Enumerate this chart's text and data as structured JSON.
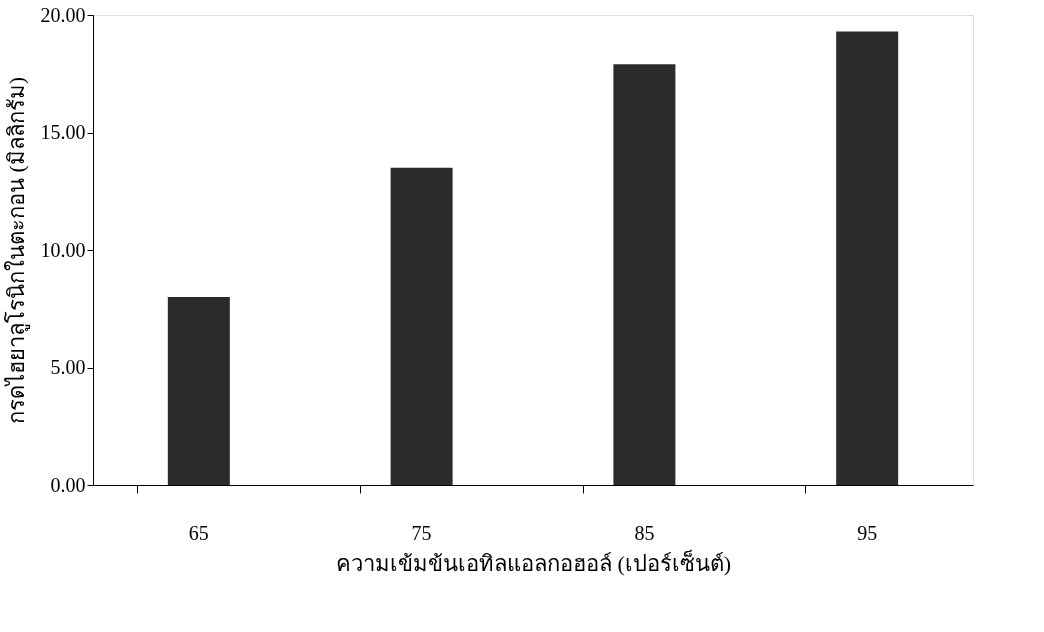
{
  "chart_data": {
    "type": "bar",
    "xlabel": "ความเข้มข้นเอทิลแอลกอฮอล์ (เปอร์เซ็นต์)",
    "ylabel": "กรดไฮยาลูโรนิกในตะกอน (มิลลิกรัม)",
    "categories": [
      "65",
      "75",
      "85",
      "95"
    ],
    "values": [
      8.0,
      13.5,
      17.9,
      19.3
    ],
    "color": "#2b2b2b",
    "ylim": [
      0,
      20
    ],
    "yticks": [
      {
        "value": 0,
        "label": "0.00"
      },
      {
        "value": 5,
        "label": "5.00"
      },
      {
        "value": 10,
        "label": "10.00"
      },
      {
        "value": 15,
        "label": "15.00"
      },
      {
        "value": 20,
        "label": "20.00"
      }
    ],
    "grid": false
  }
}
